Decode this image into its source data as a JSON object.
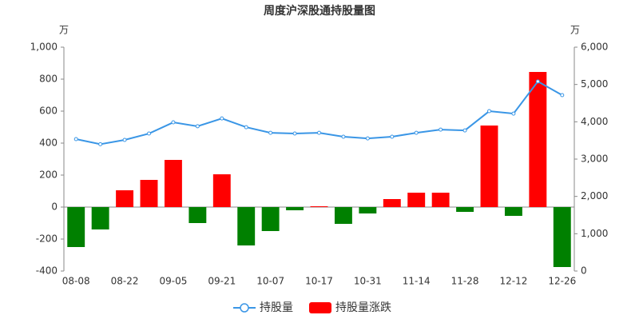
{
  "chart_data": {
    "type": "bar-line",
    "title": "周度沪深股通持股量图",
    "y_unit": "万",
    "y2_unit": "万",
    "categories": [
      "08-08",
      null,
      "08-22",
      null,
      "09-05",
      null,
      "09-21",
      null,
      "10-07",
      null,
      "10-17",
      null,
      "10-31",
      null,
      "11-14",
      null,
      "11-28",
      null,
      "12-12",
      null,
      "12-26"
    ],
    "series": [
      {
        "name": "持股量",
        "type": "line",
        "axis": "y2",
        "color": "#3a96e6",
        "values": [
          3535,
          3400,
          3515,
          3685,
          3985,
          3880,
          4090,
          3855,
          3705,
          3685,
          3705,
          3600,
          3555,
          3600,
          3705,
          3790,
          3770,
          4285,
          4220,
          5080,
          4715
        ]
      },
      {
        "name": "持股量涨跌",
        "type": "bar",
        "axis": "y",
        "color": "#ff0000",
        "negative_color": "#008000",
        "values": [
          -250,
          -140,
          105,
          170,
          295,
          -100,
          205,
          -240,
          -150,
          -20,
          5,
          -105,
          -40,
          50,
          90,
          90,
          -30,
          510,
          -55,
          845,
          -375
        ]
      }
    ],
    "ylim": [
      -400,
      1000
    ],
    "yticks": [
      -400,
      -200,
      0,
      200,
      400,
      600,
      800,
      {
        "value": 1000,
        "label": "1,000"
      }
    ],
    "y2lim": [
      0,
      6000
    ],
    "y2ticks": [
      0,
      {
        "value": 1000,
        "label": "1,000"
      },
      {
        "value": 2000,
        "label": "2,000"
      },
      {
        "value": 3000,
        "label": "3,000"
      },
      {
        "value": 4000,
        "label": "4,000"
      },
      {
        "value": 5000,
        "label": "5,000"
      },
      {
        "value": 6000,
        "label": "6,000"
      }
    ],
    "grid": false,
    "legend": "bottom"
  }
}
